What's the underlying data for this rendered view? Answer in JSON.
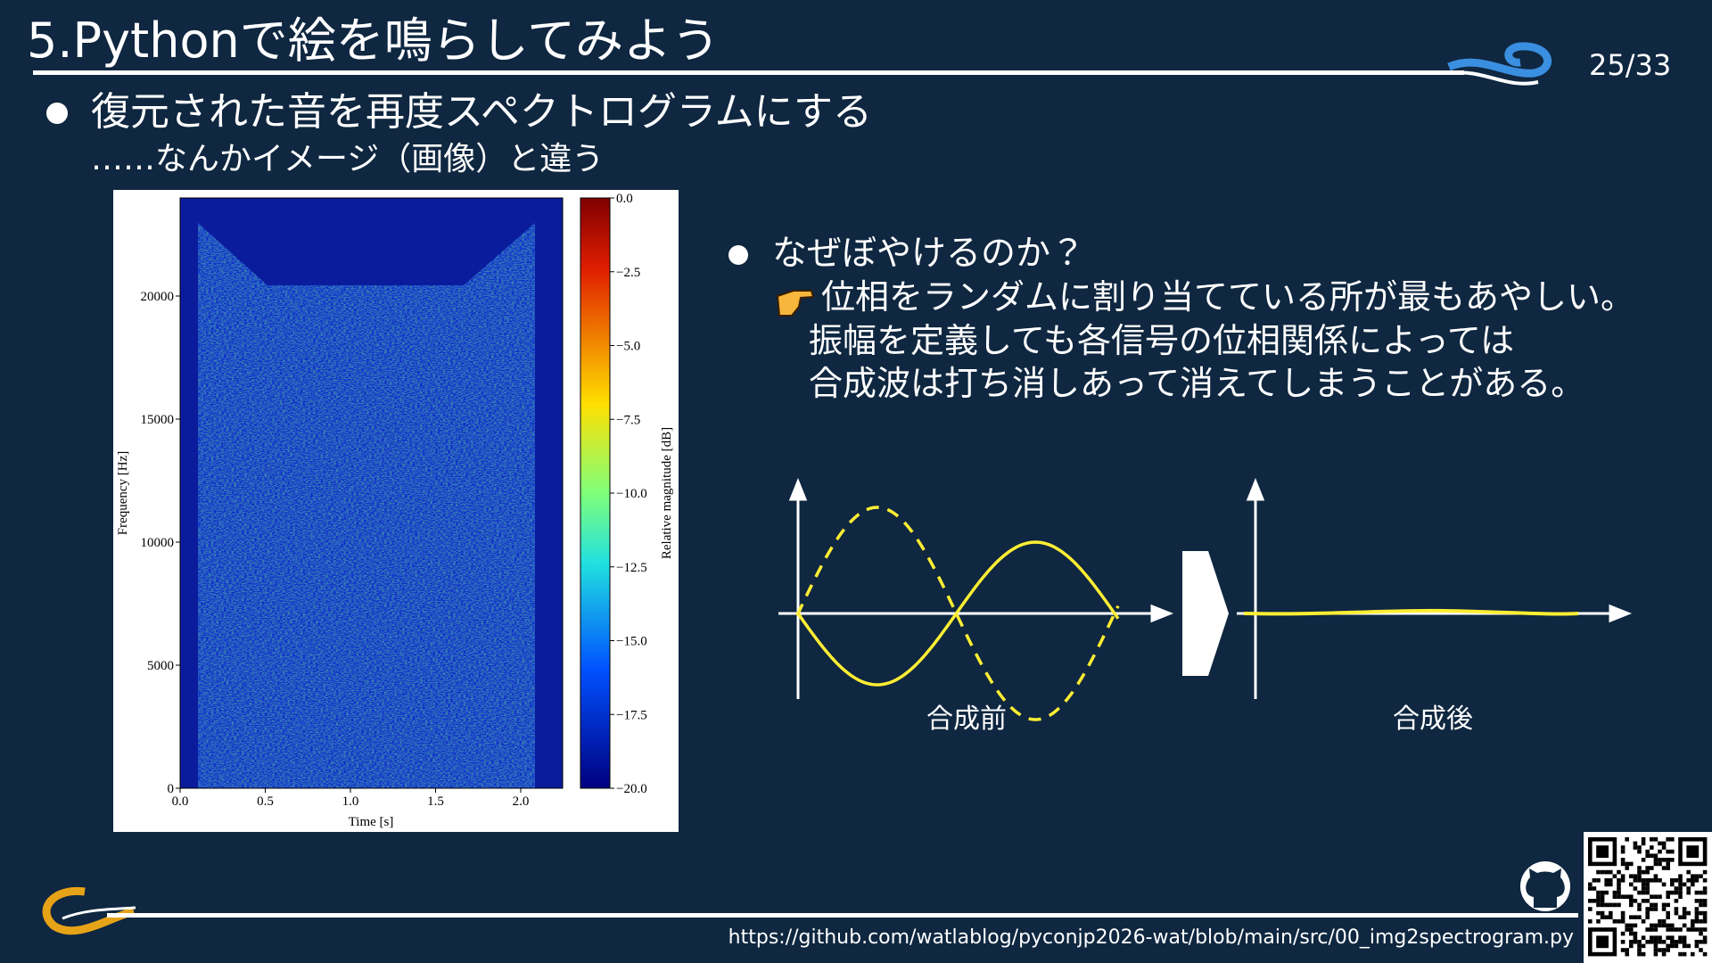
{
  "header": {
    "title": "5.Pythonで絵を鳴らしてみよう",
    "page": "25/33"
  },
  "bullet_1": {
    "text": "復元された音を再度スペクトログラムにする",
    "sub": "……なんかイメージ（画像）と違う"
  },
  "spectrogram": {
    "y_label": "Frequency [Hz]",
    "x_label": "Time [s]",
    "colorbar_label": "Relative magnitude [dB]",
    "y_ticks": [
      "0",
      "5000",
      "10000",
      "15000",
      "20000"
    ],
    "x_ticks": [
      "0.0",
      "0.5",
      "1.0",
      "1.5",
      "2.0"
    ],
    "colorbar_ticks": [
      "0.0",
      "−2.5",
      "−5.0",
      "−7.5",
      "−10.0",
      "−12.5",
      "−15.0",
      "−17.5",
      "−20.0"
    ]
  },
  "bullet_2": {
    "text": "なぜぼやけるのか？",
    "lines": [
      "位相をランダムに割り当てている所が最もあやしい。",
      "振幅を定義しても各信号の位相関係によっては",
      "合成波は打ち消しあって消えてしまうことがある。"
    ]
  },
  "diagram": {
    "before_label": "合成前",
    "after_label": "合成後"
  },
  "footer": {
    "url": "https://github.com/watlablog/pyconjp2026-wat/blob/main/src/00_img2spectrogram.py"
  }
}
